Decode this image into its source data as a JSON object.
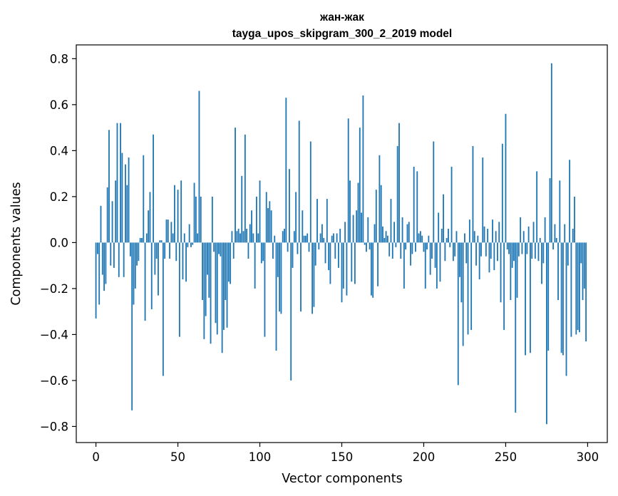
{
  "chart_data": {
    "type": "bar",
    "title": "жан-жак",
    "subtitle": "tayga_upos_skipgram_300_2_2019 model",
    "xlabel": "Vector components",
    "ylabel": "Components values",
    "xlim": [
      -12,
      312
    ],
    "ylim": [
      -0.87,
      0.86
    ],
    "xticks": [
      0,
      50,
      100,
      150,
      200,
      250,
      300
    ],
    "xtick_labels": [
      "0",
      "50",
      "100",
      "150",
      "200",
      "250",
      "300"
    ],
    "yticks": [
      -0.8,
      -0.6,
      -0.4,
      -0.2,
      0.0,
      0.2,
      0.4,
      0.6,
      0.8
    ],
    "ytick_labels": [
      "−0.8",
      "−0.6",
      "−0.4",
      "−0.2",
      "0.0",
      "0.2",
      "0.4",
      "0.6",
      "0.8"
    ],
    "bar_color": "#1f77b4",
    "grid": false,
    "x": "0..299",
    "values": [
      -0.33,
      -0.05,
      -0.27,
      0.16,
      -0.14,
      -0.21,
      -0.18,
      0.24,
      0.49,
      -0.1,
      0.18,
      -0.11,
      0.27,
      0.52,
      -0.15,
      0.52,
      0.39,
      -0.15,
      0.34,
      0.25,
      0.37,
      -0.06,
      -0.73,
      -0.27,
      -0.2,
      -0.1,
      -0.08,
      0.02,
      0.02,
      0.38,
      -0.34,
      0.04,
      0.14,
      0.22,
      -0.29,
      0.47,
      -0.14,
      -0.07,
      -0.23,
      0.01,
      0.01,
      -0.58,
      -0.07,
      0.1,
      0.1,
      -0.07,
      0.09,
      0.04,
      0.25,
      -0.08,
      0.23,
      -0.41,
      0.27,
      -0.16,
      0.04,
      -0.17,
      -0.02,
      0.08,
      -0.02,
      -0.01,
      0.26,
      0.2,
      0.04,
      0.66,
      0.2,
      -0.25,
      -0.42,
      -0.32,
      -0.14,
      -0.24,
      -0.44,
      0.2,
      -0.04,
      -0.35,
      -0.4,
      -0.05,
      -0.06,
      -0.48,
      -0.38,
      -0.25,
      -0.37,
      -0.17,
      -0.18,
      0.05,
      -0.07,
      0.5,
      0.05,
      0.06,
      0.04,
      0.29,
      0.05,
      0.47,
      0.06,
      -0.07,
      0.08,
      0.14,
      0.04,
      -0.2,
      0.2,
      0.04,
      0.27,
      -0.09,
      -0.08,
      -0.41,
      0.22,
      0.15,
      0.18,
      0.14,
      -0.07,
      0.03,
      -0.47,
      -0.15,
      -0.3,
      -0.31,
      0.05,
      0.06,
      0.63,
      -0.04,
      0.32,
      -0.6,
      -0.11,
      0.05,
      0.22,
      -0.05,
      0.53,
      -0.3,
      0.14,
      0.03,
      0.03,
      0.04,
      -0.04,
      0.44,
      -0.31,
      -0.28,
      -0.1,
      0.19,
      -0.03,
      0.04,
      0.08,
      0.02,
      -0.09,
      0.19,
      -0.12,
      -0.18,
      0.03,
      0.04,
      -0.07,
      0.04,
      -0.11,
      0.06,
      -0.26,
      -0.2,
      0.09,
      -0.23,
      0.54,
      0.27,
      -0.17,
      0.12,
      -0.18,
      0.14,
      0.26,
      0.5,
      0.13,
      0.64,
      -0.01,
      -0.04,
      0.11,
      -0.03,
      -0.23,
      -0.24,
      0.08,
      0.23,
      -0.19,
      0.38,
      0.25,
      0.07,
      0.02,
      0.05,
      0.03,
      -0.06,
      0.19,
      -0.07,
      0.09,
      -0.02,
      0.42,
      0.52,
      -0.07,
      0.11,
      -0.2,
      -0.03,
      0.08,
      0.09,
      -0.1,
      -0.05,
      0.33,
      -0.04,
      0.31,
      0.04,
      0.05,
      0.03,
      -0.04,
      -0.2,
      -0.03,
      0.03,
      -0.14,
      -0.07,
      0.44,
      -0.11,
      -0.2,
      0.13,
      -0.17,
      0.06,
      0.21,
      -0.08,
      0.02,
      0.06,
      -0.02,
      0.33,
      -0.08,
      -0.06,
      0.05,
      -0.62,
      -0.15,
      -0.26,
      -0.45,
      0.04,
      -0.09,
      -0.4,
      0.1,
      -0.38,
      0.42,
      0.05,
      -0.1,
      0.03,
      -0.16,
      -0.06,
      0.37,
      0.07,
      -0.06,
      0.06,
      -0.13,
      -0.07,
      0.1,
      -0.12,
      0.05,
      -0.08,
      0.09,
      -0.26,
      0.43,
      -0.38,
      0.56,
      -0.03,
      -0.05,
      -0.25,
      -0.11,
      -0.08,
      -0.74,
      -0.24,
      -0.06,
      0.11,
      -0.05,
      0.05,
      -0.49,
      -0.05,
      0.07,
      -0.48,
      -0.07,
      0.09,
      -0.07,
      0.31,
      -0.08,
      0.02,
      -0.18,
      -0.09,
      0.11,
      -0.79,
      -0.47,
      0.28,
      0.78,
      -0.03,
      0.08,
      0.02,
      -0.25,
      0.27,
      -0.48,
      -0.49,
      0.08,
      -0.58,
      -0.1,
      0.36,
      -0.41,
      0.06,
      0.2,
      -0.4,
      -0.38,
      -0.39,
      -0.09,
      -0.25,
      -0.2,
      -0.43
    ]
  }
}
